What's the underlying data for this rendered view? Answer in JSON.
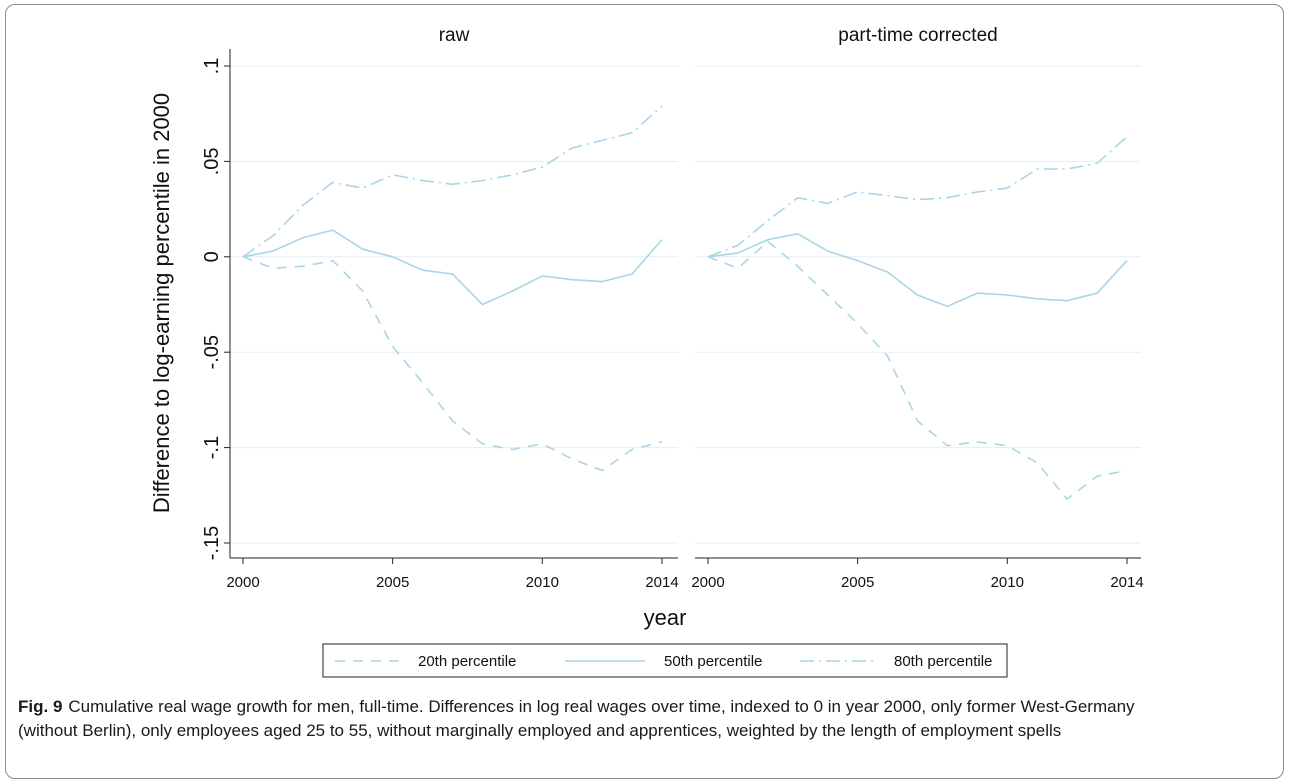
{
  "chart_data": {
    "type": "line",
    "panels": [
      {
        "title": "raw",
        "x": [
          2000,
          2001,
          2002,
          2003,
          2004,
          2005,
          2006,
          2007,
          2008,
          2009,
          2010,
          2011,
          2012,
          2013,
          2014
        ],
        "series": [
          {
            "name": "20th percentile",
            "values": [
              0,
              -0.006,
              -0.005,
              -0.002,
              -0.018,
              -0.047,
              -0.066,
              -0.086,
              -0.098,
              -0.101,
              -0.098,
              -0.106,
              -0.112,
              -0.101,
              -0.097
            ]
          },
          {
            "name": "50th percentile",
            "values": [
              0,
              0.003,
              0.01,
              0.014,
              0.004,
              0,
              -0.007,
              -0.009,
              -0.025,
              -0.018,
              -0.01,
              -0.012,
              -0.013,
              -0.009,
              0.009
            ]
          },
          {
            "name": "80th percentile",
            "values": [
              0,
              0.011,
              0.027,
              0.039,
              0.036,
              0.043,
              0.04,
              0.038,
              0.04,
              0.043,
              0.047,
              0.057,
              0.061,
              0.065,
              0.079
            ]
          }
        ]
      },
      {
        "title": "part-time corrected",
        "x": [
          2000,
          2001,
          2002,
          2003,
          2004,
          2005,
          2006,
          2007,
          2008,
          2009,
          2010,
          2011,
          2012,
          2013,
          2014
        ],
        "series": [
          {
            "name": "20th percentile",
            "values": [
              0,
              -0.006,
              0.008,
              -0.005,
              -0.02,
              -0.035,
              -0.052,
              -0.086,
              -0.099,
              -0.097,
              -0.099,
              -0.108,
              -0.127,
              -0.115,
              -0.112
            ]
          },
          {
            "name": "50th percentile",
            "values": [
              0,
              0.002,
              0.009,
              0.012,
              0.003,
              -0.002,
              -0.008,
              -0.02,
              -0.026,
              -0.019,
              -0.02,
              -0.022,
              -0.023,
              -0.019,
              -0.002
            ]
          },
          {
            "name": "80th percentile",
            "values": [
              0,
              0.006,
              0.019,
              0.031,
              0.028,
              0.034,
              0.032,
              0.03,
              0.031,
              0.034,
              0.036,
              0.046,
              0.046,
              0.049,
              0.063
            ]
          }
        ]
      }
    ],
    "xlabel": "year",
    "ylabel": "Difference to log-earning percentile in 2000",
    "xticks": [
      2000,
      2005,
      2010,
      2014
    ],
    "ylim": [
      -0.15,
      0.1
    ],
    "yticks": [
      0.1,
      0.05,
      0,
      -0.05,
      -0.1,
      -0.15
    ],
    "ytick_labels": [
      ".1",
      ".05",
      "0",
      "-.05",
      "-.1",
      "-.15"
    ],
    "grid": true,
    "legend_position": "bottom",
    "line_color": "#a9d6e6"
  },
  "caption": {
    "label": "Fig. 9",
    "text": "Cumulative real wage growth for men, full-time. Differences in log real wages over time, indexed to 0 in year 2000, only former West-Germany (without Berlin), only employees aged 25 to 55, without marginally employed and apprentices, weighted by the length of employment spells"
  }
}
